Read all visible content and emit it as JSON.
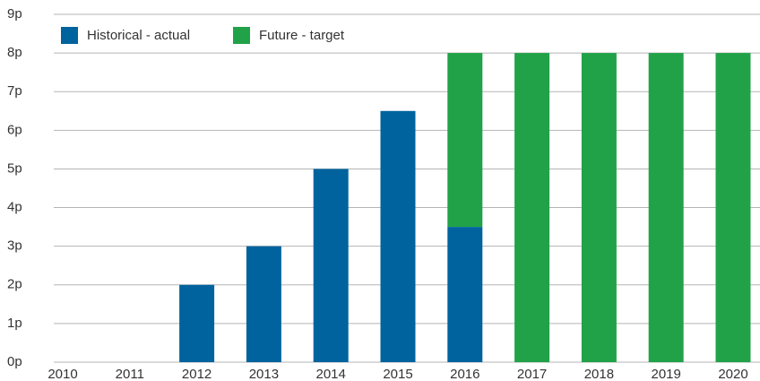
{
  "chart_data": {
    "type": "stacked_bar",
    "categories": [
      "2010",
      "2011",
      "2012",
      "2013",
      "2014",
      "2015",
      "2016",
      "2017",
      "2018",
      "2019",
      "2020"
    ],
    "series": [
      {
        "name": "Historical - actual",
        "color": "#00639e",
        "values": [
          0,
          0,
          2,
          3,
          5,
          6.5,
          3.5,
          0,
          0,
          0,
          0
        ]
      },
      {
        "name": "Future - target",
        "color": "#21a249",
        "values": [
          0,
          0,
          0,
          0,
          0,
          0,
          4.5,
          8,
          8,
          8,
          8
        ]
      }
    ],
    "ylim": [
      0,
      9
    ],
    "yticks": [
      {
        "value": 0,
        "label": "0p"
      },
      {
        "value": 1,
        "label": "1p"
      },
      {
        "value": 2,
        "label": "2p"
      },
      {
        "value": 3,
        "label": "3p"
      },
      {
        "value": 4,
        "label": "4p"
      },
      {
        "value": 5,
        "label": "5p"
      },
      {
        "value": 6,
        "label": "6p"
      },
      {
        "value": 7,
        "label": "7p"
      },
      {
        "value": 8,
        "label": "8p"
      },
      {
        "value": 9,
        "label": "9p"
      }
    ],
    "grid": true,
    "legend": "top-left"
  }
}
